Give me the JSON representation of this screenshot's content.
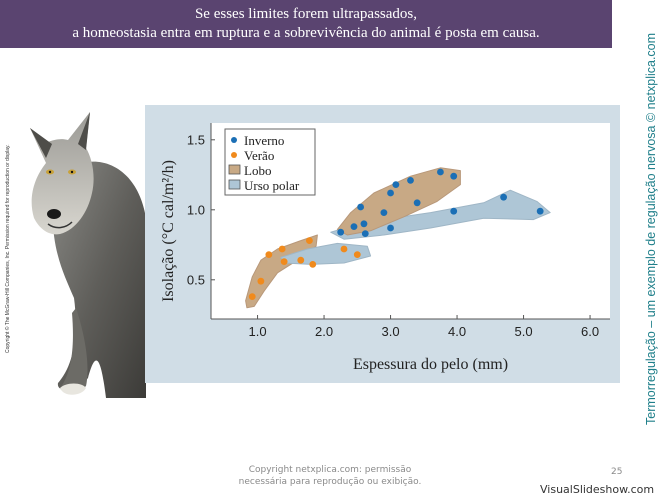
{
  "banner": {
    "line1": "Se esses limites forem ultrapassados,",
    "line2": "a homeostasia entra em ruptura e a sobrevivência do animal é posta em causa."
  },
  "side_title": "Termorregulação – um exemplo de regulação nervosa © netxplica.com",
  "copyright_side": "Copyright © The McGraw-Hill Companies, Inc. Permission required for reproduction or display.",
  "footer": {
    "line1": "Copyright netxplica.com: permissão",
    "line2": "necessária para reprodução ou exibição."
  },
  "page_number": "25",
  "watermark": "VisualSlideshow.com",
  "colors": {
    "banner": "#5a4470",
    "inverno": "#1b6fb5",
    "verao": "#f08a1c",
    "lobo": "#c8a985",
    "urso": "#aec6d6",
    "side_title": "#1f7f8a"
  },
  "chart_data": {
    "type": "scatter",
    "xlabel": "Espessura do pelo (mm)",
    "ylabel": "Isolação (°C cal/m²/h)",
    "xlim": [
      0.3,
      6.3
    ],
    "ylim": [
      0.22,
      1.62
    ],
    "x_ticks": [
      "1.0",
      "2.0",
      "3.0",
      "4.0",
      "5.0",
      "6.0"
    ],
    "y_ticks": [
      "0.5",
      "1.0",
      "1.5"
    ],
    "legend_position": "top-left",
    "series": [
      {
        "name": "Inverno",
        "marker": "circle",
        "points": [
          [
            2.25,
            0.84
          ],
          [
            2.45,
            0.88
          ],
          [
            2.55,
            1.02
          ],
          [
            2.6,
            0.9
          ],
          [
            2.62,
            0.83
          ],
          [
            2.9,
            0.98
          ],
          [
            3.0,
            0.87
          ],
          [
            3.0,
            1.12
          ],
          [
            3.08,
            1.18
          ],
          [
            3.3,
            1.21
          ],
          [
            3.4,
            1.05
          ],
          [
            3.75,
            1.27
          ],
          [
            3.95,
            1.24
          ],
          [
            3.95,
            0.99
          ],
          [
            4.7,
            1.09
          ],
          [
            5.25,
            0.99
          ]
        ]
      },
      {
        "name": "Verão",
        "marker": "circle",
        "points": [
          [
            0.92,
            0.38
          ],
          [
            1.05,
            0.49
          ],
          [
            1.17,
            0.68
          ],
          [
            1.37,
            0.72
          ],
          [
            1.4,
            0.63
          ],
          [
            1.65,
            0.64
          ],
          [
            1.78,
            0.78
          ],
          [
            1.83,
            0.61
          ],
          [
            2.3,
            0.72
          ],
          [
            2.5,
            0.68
          ]
        ]
      }
    ],
    "regions": [
      {
        "name": "Lobo"
      },
      {
        "name": "Urso polar"
      }
    ]
  }
}
